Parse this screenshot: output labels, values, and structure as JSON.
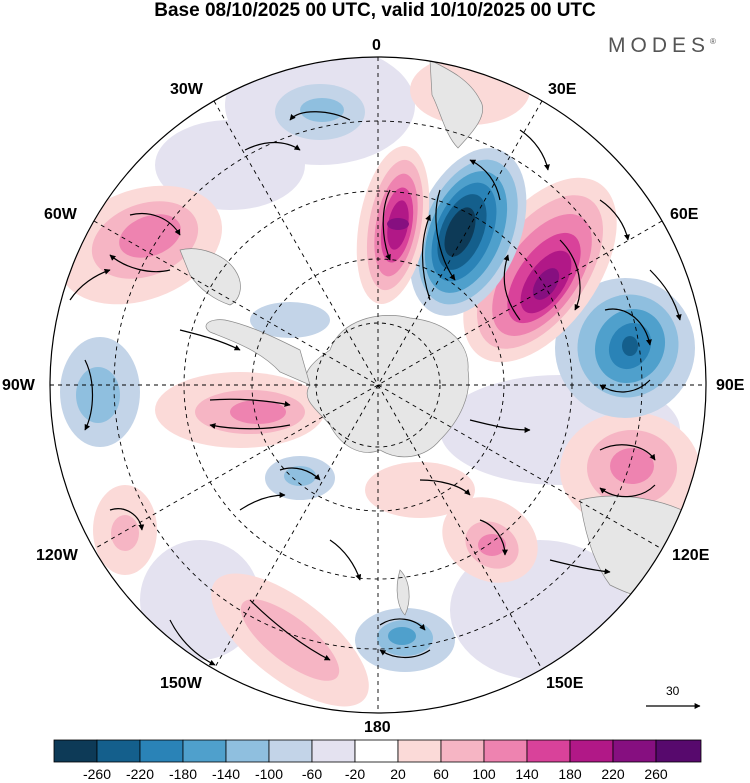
{
  "title": "Base 08/10/2025 00 UTC, valid 10/10/2025 00 UTC",
  "brand": {
    "name": "MODES",
    "mark": "®"
  },
  "longitude_labels": {
    "n0": "0",
    "n30e": "30E",
    "n60e": "60E",
    "n90e": "90E",
    "n120e": "120E",
    "n150e": "150E",
    "n180": "180",
    "n150w": "150W",
    "n120w": "120W",
    "n90w": "90W",
    "n60w": "60W",
    "n30w": "30W"
  },
  "reference_vector": {
    "label": "30"
  },
  "colorbar": {
    "labels": [
      "-260",
      "-220",
      "-180",
      "-140",
      "-100",
      "-60",
      "-20",
      "20",
      "60",
      "100",
      "140",
      "180",
      "220",
      "260"
    ],
    "colors": [
      "#0d3a57",
      "#145f8c",
      "#2a83b7",
      "#4fa0cc",
      "#8fbfdf",
      "#c3d4e8",
      "#e4e2f0",
      "#ffffff",
      "#fbdad8",
      "#f6b5c4",
      "#ee83b0",
      "#d9429a",
      "#b11887",
      "#860f80",
      "#57096d"
    ]
  },
  "map": {
    "projection": "south-polar-stereographic",
    "field": "anomaly",
    "vectors": "wind"
  },
  "colors": {
    "ocean": "#ffffff",
    "land": "#e6e6e6",
    "grid": "#000000"
  }
}
